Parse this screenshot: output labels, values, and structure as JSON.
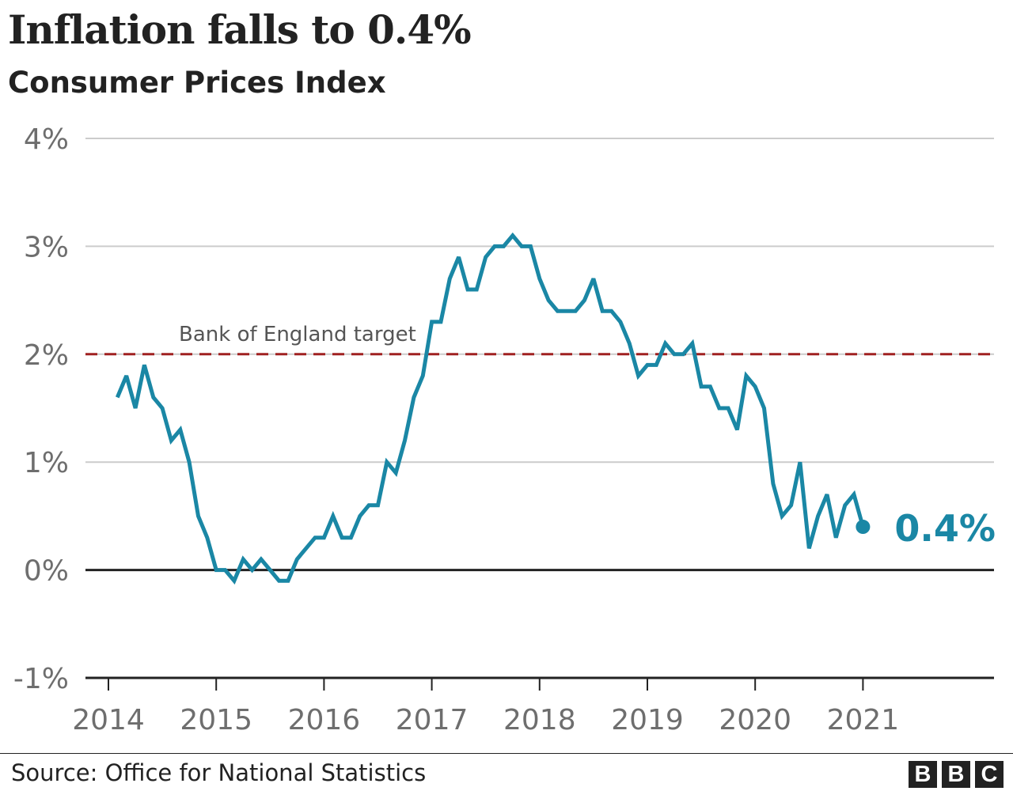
{
  "title": "Inflation falls to 0.4%",
  "subtitle": "Consumer Prices Index",
  "source": "Source: Office for National Statistics",
  "logo": [
    "B",
    "B",
    "C"
  ],
  "colors": {
    "line": "#1a87a5",
    "target": "#a02020",
    "grid": "#cccccc",
    "axis": "#222222",
    "tick_text": "#6e6e6e"
  },
  "chart_data": {
    "type": "line",
    "title": "Inflation falls to 0.4%",
    "subtitle": "Consumer Prices Index",
    "ylim": [
      -1,
      4
    ],
    "y_ticks": [
      {
        "value": 4,
        "label": "4%"
      },
      {
        "value": 3,
        "label": "3%"
      },
      {
        "value": 2,
        "label": "2%"
      },
      {
        "value": 1,
        "label": "1%"
      },
      {
        "value": 0,
        "label": "0%"
      },
      {
        "value": -1,
        "label": "-1%"
      }
    ],
    "x_ticks": [
      "2014",
      "2015",
      "2016",
      "2017",
      "2018",
      "2019",
      "2020",
      "2021"
    ],
    "grid": true,
    "reference_line": {
      "value": 2,
      "label": "Bank of England target"
    },
    "end_label": "0.4%",
    "series": [
      {
        "start": "2014-02",
        "values": [
          1.6,
          1.8,
          1.5,
          1.9,
          1.6,
          1.5,
          1.2,
          1.3,
          1.0,
          0.5,
          0.3,
          0.0,
          0.0,
          -0.1,
          0.1,
          0.0,
          0.1,
          0.0,
          -0.1,
          -0.1,
          0.1,
          0.2,
          0.3,
          0.3,
          0.5,
          0.3,
          0.3,
          0.5,
          0.6,
          0.6,
          1.0,
          0.9,
          1.2,
          1.6,
          1.8,
          2.3,
          2.3,
          2.7,
          2.9,
          2.6,
          2.6,
          2.9,
          3.0,
          3.0,
          3.1,
          3.0,
          3.0,
          2.7,
          2.5,
          2.4,
          2.4,
          2.4,
          2.5,
          2.7,
          2.4,
          2.4,
          2.3,
          2.1,
          1.8,
          1.9,
          1.9,
          2.1,
          2.0,
          2.0,
          2.1,
          1.7,
          1.7,
          1.5,
          1.5,
          1.3,
          1.8,
          1.7,
          1.5,
          0.8,
          0.5,
          0.6,
          1.0,
          0.2,
          0.5,
          0.7,
          0.3,
          0.6,
          0.7,
          0.4
        ]
      }
    ]
  }
}
